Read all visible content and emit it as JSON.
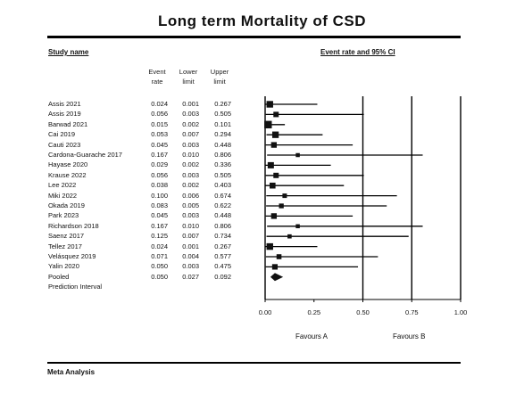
{
  "title": "Long term Mortality of CSD",
  "headers": {
    "study_name": "Study name",
    "plot_header": "Event rate and 95% CI",
    "col_event": "Event rate",
    "col_lower": "Lower limit",
    "col_upper": "Upper limit"
  },
  "footer": "Meta Analysis",
  "chart_data": {
    "type": "forest",
    "xlim": [
      0,
      1
    ],
    "x_ticks": [
      "0.00",
      "0.25",
      "0.50",
      "0.75",
      "1.00"
    ],
    "favours": [
      "Favours A",
      "Favours B"
    ],
    "rows": [
      {
        "study": "Assis 2021",
        "rate": "0.024",
        "lower": "0.001",
        "upper": "0.267"
      },
      {
        "study": "Assis 2019",
        "rate": "0.056",
        "lower": "0.003",
        "upper": "0.505"
      },
      {
        "study": "Barwad 2021",
        "rate": "0.015",
        "lower": "0.002",
        "upper": "0.101"
      },
      {
        "study": "Cai 2019",
        "rate": "0.053",
        "lower": "0.007",
        "upper": "0.294"
      },
      {
        "study": "Cauti 2023",
        "rate": "0.045",
        "lower": "0.003",
        "upper": "0.448"
      },
      {
        "study": "Cardona-Guarache 2017",
        "rate": "0.167",
        "lower": "0.010",
        "upper": "0.806"
      },
      {
        "study": "Hayase 2020",
        "rate": "0.029",
        "lower": "0.002",
        "upper": "0.336"
      },
      {
        "study": "Krause 2022",
        "rate": "0.056",
        "lower": "0.003",
        "upper": "0.505"
      },
      {
        "study": "Lee 2022",
        "rate": "0.038",
        "lower": "0.002",
        "upper": "0.403"
      },
      {
        "study": "Miki 2022",
        "rate": "0.100",
        "lower": "0.006",
        "upper": "0.674"
      },
      {
        "study": "Okada 2019",
        "rate": "0.083",
        "lower": "0.005",
        "upper": "0.622"
      },
      {
        "study": "Park 2023",
        "rate": "0.045",
        "lower": "0.003",
        "upper": "0.448"
      },
      {
        "study": "Richardson 2018",
        "rate": "0.167",
        "lower": "0.010",
        "upper": "0.806"
      },
      {
        "study": "Saenz 2017",
        "rate": "0.125",
        "lower": "0.007",
        "upper": "0.734"
      },
      {
        "study": "Tellez 2017",
        "rate": "0.024",
        "lower": "0.001",
        "upper": "0.267"
      },
      {
        "study": "Velásquez 2019",
        "rate": "0.071",
        "lower": "0.004",
        "upper": "0.577"
      },
      {
        "study": "Yalin 2020",
        "rate": "0.050",
        "lower": "0.003",
        "upper": "0.475"
      }
    ],
    "pooled": {
      "study": "Pooled",
      "rate": "0.050",
      "lower": "0.027",
      "upper": "0.092"
    },
    "prediction_interval_label": "Prediction Interval"
  }
}
